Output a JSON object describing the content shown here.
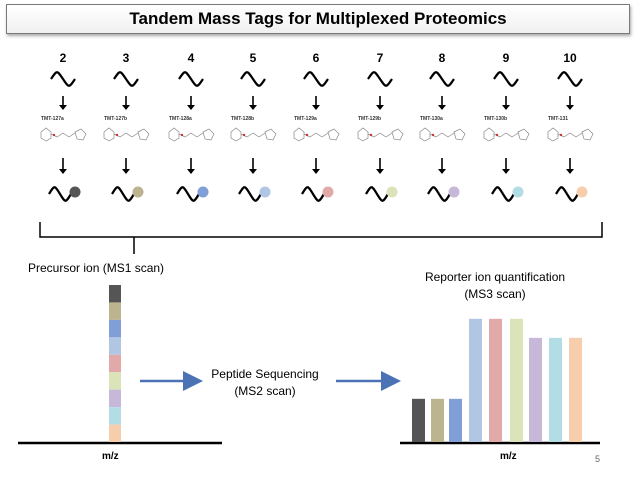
{
  "title": "Tandem Mass Tags for Multiplexed Proteomics",
  "colors": [
    "#555555",
    "#bcb38f",
    "#7f9fd6",
    "#b1c6e2",
    "#e2a9a9",
    "#dbe4b8",
    "#c7b7d8",
    "#b3dde4",
    "#f6ceac"
  ],
  "channels": [
    {
      "number": "2",
      "tag": "TMT-127a",
      "color": "#555555"
    },
    {
      "number": "3",
      "tag": "TMT-127b",
      "color": "#bcb38f"
    },
    {
      "number": "4",
      "tag": "TMT-128a",
      "color": "#7f9fd6"
    },
    {
      "number": "5",
      "tag": "TMT-128b",
      "color": "#b1c6e2"
    },
    {
      "number": "6",
      "tag": "TMT-129a",
      "color": "#e2a9a9"
    },
    {
      "number": "7",
      "tag": "TMT-129b",
      "color": "#dbe4b8"
    },
    {
      "number": "8",
      "tag": "TMT-130a",
      "color": "#c7b7d8"
    },
    {
      "number": "9",
      "tag": "TMT-130b",
      "color": "#b3dde4"
    },
    {
      "number": "10",
      "tag": "TMT-131",
      "color": "#f6ceac"
    }
  ],
  "precursor_label": "Precursor ion (MS1 scan)",
  "sequencing_label_line1": "Peptide Sequencing",
  "sequencing_label_line2": "(MS2 scan)",
  "reporter_label_line1": "Reporter ion quantification",
  "reporter_label_line2": "(MS3 scan)",
  "xaxis_label_left": "m/z",
  "xaxis_label_right": "m/z",
  "page_number": "5",
  "reporter_intensities": [
    0.34,
    0.34,
    0.34,
    0.97,
    0.97,
    0.97,
    0.82,
    0.82,
    0.82
  ]
}
